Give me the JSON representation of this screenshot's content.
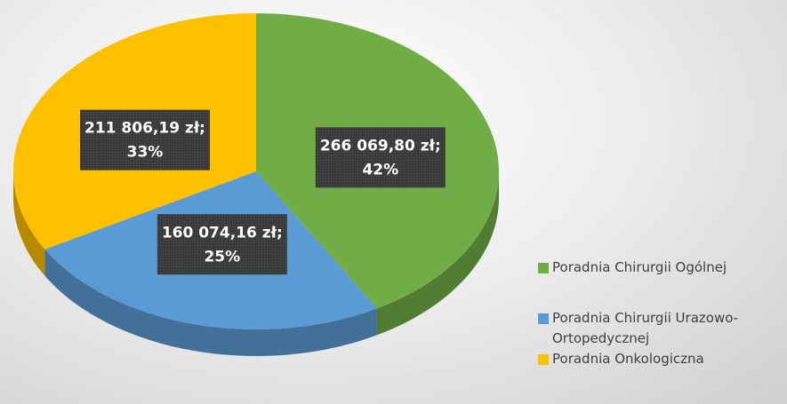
{
  "chart_data": {
    "type": "pie3d",
    "categories": [
      "Poradnia Chirurgii Ogólnej",
      "Poradnia Chirurgii Urazowo-Ortopedycznej",
      "Poradnia Onkologiczna"
    ],
    "values": [
      266069.8,
      160074.16,
      211806.19
    ],
    "value_labels": [
      "266 069,80 zł;",
      "160 074,16 zł;",
      "211 806,19 zł;"
    ],
    "percents": [
      42,
      25,
      33
    ],
    "percent_labels": [
      "42%",
      "25%",
      "33%"
    ],
    "colors": [
      "#70ad47",
      "#5b9bd5",
      "#ffc000"
    ],
    "legend": "right"
  }
}
